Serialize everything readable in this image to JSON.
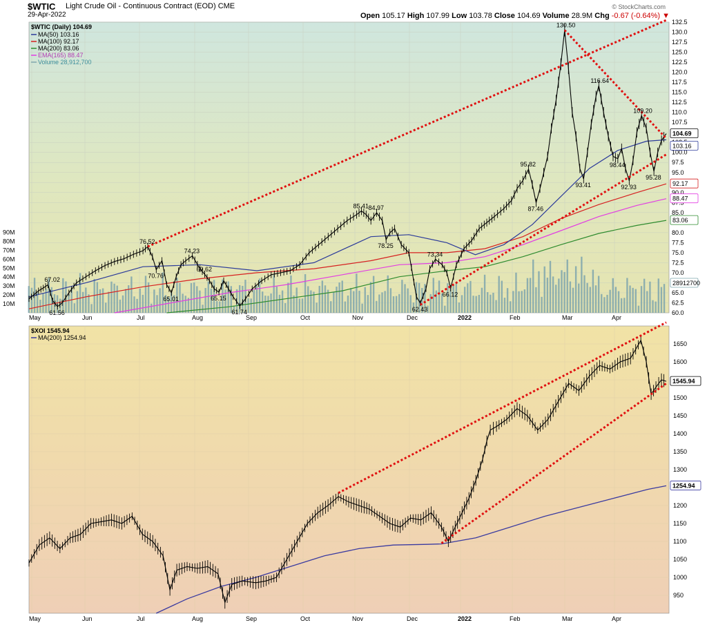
{
  "header": {
    "symbol": "$WTIC",
    "name": "Light Crude Oil - Continuous Contract (EOD) CME",
    "date": "29-Apr-2022",
    "open_label": "Open",
    "open": "105.17",
    "high_label": "High",
    "high": "107.99",
    "low_label": "Low",
    "low": "103.78",
    "close_label": "Close",
    "close": "104.69",
    "volume_label": "Volume",
    "volume": "28.9M",
    "chg_label": "Chg",
    "chg": "-0.67 (-0.64%)",
    "logo": "© StockCharts.com"
  },
  "colors": {
    "price": "#000000",
    "ma50": "#2b3a9a",
    "ma100": "#d62020",
    "ma200": "#2e8b2e",
    "ema165": "#e23de2",
    "volume": "#7fa6ad",
    "channel": "#e01010",
    "xoi_ma200": "#3a3aa0"
  },
  "chart_data": [
    {
      "type": "line",
      "title": "$WTIC (Daily) 104.69",
      "legend": [
        {
          "key": "ma50",
          "label": "MA(50) 103.16"
        },
        {
          "key": "ma100",
          "label": "MA(100) 92.17"
        },
        {
          "key": "ma200",
          "label": "MA(200) 83.06"
        },
        {
          "key": "ema165",
          "label": "EMA(165) 88.47"
        },
        {
          "key": "volume",
          "label": "Volume 28,912,700"
        }
      ],
      "months": [
        "May",
        "Jun",
        "Jul",
        "Aug",
        "Sep",
        "Oct",
        "Nov",
        "Dec",
        "2022",
        "Feb",
        "Mar",
        "Apr"
      ],
      "ylim": [
        60,
        132.5
      ],
      "yticks": [
        "132.5",
        "130.0",
        "127.5",
        "125.0",
        "122.5",
        "120.0",
        "117.5",
        "115.0",
        "112.5",
        "110.0",
        "107.5",
        "105.0",
        "102.5",
        "100.0",
        "97.5",
        "95.0",
        "92.5",
        "90.0",
        "87.5",
        "85.0",
        "82.5",
        "80.0",
        "77.5",
        "75.0",
        "72.5",
        "70.0",
        "67.5",
        "65.0",
        "62.5",
        "60.0"
      ],
      "volume_ticks": [
        "90M",
        "80M",
        "70M",
        "60M",
        "50M",
        "40M",
        "30M",
        "20M",
        "10M"
      ],
      "end_labels": [
        {
          "text": "104.69",
          "y": 104.69,
          "series": "price"
        },
        {
          "text": "103.16",
          "y": 103.16,
          "series": "ma50"
        },
        {
          "text": "92.17",
          "y": 92.17,
          "series": "ma100"
        },
        {
          "text": "88.47",
          "y": 88.47,
          "series": "ema165"
        },
        {
          "text": "83.06",
          "y": 83.06,
          "series": "ma200"
        },
        {
          "text": "28912700",
          "y": 62.3,
          "series": "volume"
        }
      ],
      "price_path": [
        [
          0,
          63.5
        ],
        [
          5,
          64.5
        ],
        [
          10,
          65.5
        ],
        [
          15,
          66.2
        ],
        [
          20,
          67.0
        ],
        [
          25,
          63.0
        ],
        [
          30,
          61.56
        ],
        [
          35,
          62.5
        ],
        [
          42,
          65.0
        ],
        [
          50,
          67.5
        ],
        [
          60,
          69.0
        ],
        [
          70,
          70.5
        ],
        [
          80,
          71.8
        ],
        [
          90,
          72.8
        ],
        [
          100,
          73.5
        ],
        [
          110,
          74.6
        ],
        [
          120,
          75.5
        ],
        [
          125,
          76.52
        ],
        [
          130,
          74.0
        ],
        [
          134,
          70.76
        ],
        [
          140,
          73.0
        ],
        [
          145,
          67.0
        ],
        [
          150,
          65.01
        ],
        [
          155,
          69.0
        ],
        [
          160,
          72.0
        ],
        [
          165,
          73.0
        ],
        [
          172,
          74.23
        ],
        [
          180,
          71.0
        ],
        [
          185,
          69.62
        ],
        [
          190,
          68.0
        ],
        [
          195,
          66.0
        ],
        [
          200,
          65.15
        ],
        [
          205,
          68.0
        ],
        [
          210,
          66.0
        ],
        [
          215,
          64.0
        ],
        [
          222,
          61.74
        ],
        [
          228,
          63.5
        ],
        [
          235,
          66.0
        ],
        [
          245,
          68.0
        ],
        [
          255,
          69.5
        ],
        [
          265,
          70.0
        ],
        [
          275,
          70.5
        ],
        [
          285,
          72.0
        ],
        [
          295,
          75.0
        ],
        [
          305,
          77.0
        ],
        [
          315,
          79.0
        ],
        [
          325,
          81.0
        ],
        [
          335,
          83.0
        ],
        [
          345,
          84.5
        ],
        [
          350,
          85.41
        ],
        [
          355,
          84.5
        ],
        [
          360,
          83.0
        ],
        [
          366,
          84.97
        ],
        [
          372,
          83.0
        ],
        [
          376,
          78.25
        ],
        [
          380,
          80.0
        ],
        [
          385,
          81.0
        ],
        [
          392,
          77.0
        ],
        [
          400,
          75.0
        ],
        [
          408,
          64.0
        ],
        [
          412,
          62.43
        ],
        [
          418,
          66.0
        ],
        [
          422,
          71.0
        ],
        [
          428,
          73.34
        ],
        [
          435,
          72.0
        ],
        [
          440,
          70.0
        ],
        [
          444,
          66.12
        ],
        [
          450,
          72.0
        ],
        [
          458,
          76.0
        ],
        [
          466,
          78.0
        ],
        [
          474,
          81.0
        ],
        [
          482,
          82.5
        ],
        [
          490,
          84.0
        ],
        [
          500,
          86.0
        ],
        [
          508,
          88.0
        ],
        [
          514,
          91.0
        ],
        [
          520,
          93.0
        ],
        [
          526,
          95.82
        ],
        [
          530,
          92.0
        ],
        [
          534,
          87.46
        ],
        [
          538,
          91.0
        ],
        [
          542,
          95.0
        ],
        [
          546,
          99.0
        ],
        [
          550,
          106.0
        ],
        [
          555,
          113.0
        ],
        [
          560,
          122.0
        ],
        [
          564,
          130.5
        ],
        [
          568,
          121.0
        ],
        [
          572,
          110.0
        ],
        [
          576,
          104.0
        ],
        [
          580,
          96.0
        ],
        [
          584,
          93.41
        ],
        [
          588,
          100.0
        ],
        [
          592,
          107.0
        ],
        [
          597,
          114.0
        ],
        [
          600,
          116.64
        ],
        [
          605,
          110.0
        ],
        [
          610,
          104.0
        ],
        [
          615,
          99.0
        ],
        [
          620,
          98.44
        ],
        [
          624,
          101.0
        ],
        [
          628,
          96.0
        ],
        [
          632,
          92.93
        ],
        [
          636,
          98.0
        ],
        [
          640,
          105.0
        ],
        [
          645,
          109.2
        ],
        [
          650,
          106.0
        ],
        [
          654,
          100.0
        ],
        [
          658,
          95.28
        ],
        [
          662,
          100.0
        ],
        [
          666,
          103.0
        ],
        [
          671,
          104.69
        ]
      ],
      "ma50_path": [
        [
          0,
          64.0
        ],
        [
          60,
          67.5
        ],
        [
          120,
          71.5
        ],
        [
          180,
          72.0
        ],
        [
          240,
          70.5
        ],
        [
          300,
          72.5
        ],
        [
          360,
          79.0
        ],
        [
          400,
          79.5
        ],
        [
          440,
          77.5
        ],
        [
          470,
          74.5
        ],
        [
          500,
          77.0
        ],
        [
          530,
          82.0
        ],
        [
          560,
          89.0
        ],
        [
          590,
          96.0
        ],
        [
          620,
          100.5
        ],
        [
          650,
          102.8
        ],
        [
          671,
          103.16
        ]
      ],
      "ma100_path": [
        [
          0,
          61.0
        ],
        [
          60,
          64.0
        ],
        [
          120,
          66.5
        ],
        [
          180,
          68.5
        ],
        [
          240,
          70.0
        ],
        [
          300,
          71.0
        ],
        [
          360,
          73.0
        ],
        [
          400,
          75.0
        ],
        [
          440,
          75.0
        ],
        [
          480,
          76.0
        ],
        [
          520,
          79.0
        ],
        [
          560,
          83.5
        ],
        [
          600,
          87.0
        ],
        [
          640,
          90.0
        ],
        [
          671,
          92.17
        ]
      ],
      "ema165_path": [
        [
          90,
          60.0
        ],
        [
          150,
          62.5
        ],
        [
          210,
          65.0
        ],
        [
          270,
          67.0
        ],
        [
          330,
          69.5
        ],
        [
          390,
          72.0
        ],
        [
          440,
          72.5
        ],
        [
          480,
          74.0
        ],
        [
          520,
          77.0
        ],
        [
          560,
          80.5
        ],
        [
          600,
          84.0
        ],
        [
          640,
          86.8
        ],
        [
          671,
          88.47
        ]
      ],
      "ma200_path": [
        [
          145,
          60.0
        ],
        [
          210,
          61.5
        ],
        [
          270,
          63.5
        ],
        [
          330,
          65.5
        ],
        [
          390,
          69.0
        ],
        [
          440,
          70.5
        ],
        [
          480,
          71.5
        ],
        [
          520,
          74.0
        ],
        [
          560,
          77.0
        ],
        [
          600,
          79.8
        ],
        [
          640,
          81.8
        ],
        [
          671,
          83.06
        ]
      ],
      "channel_lines": [
        [
          [
            125,
            76.52
          ],
          [
            671,
            133.0
          ]
        ],
        [
          [
            412,
            62.0
          ],
          [
            671,
            99.5
          ]
        ],
        [
          [
            564,
            130.5
          ],
          [
            671,
            103.5
          ]
        ]
      ],
      "annotations": [
        {
          "text": "67.02",
          "x": 25,
          "y": 67.02
        },
        {
          "text": "61.56",
          "x": 30,
          "y": 61.56
        },
        {
          "text": "76.52",
          "x": 125,
          "y": 76.52
        },
        {
          "text": "70.76",
          "x": 134,
          "y": 70.76
        },
        {
          "text": "65.01",
          "x": 150,
          "y": 65.01
        },
        {
          "text": "74.23",
          "x": 172,
          "y": 74.23
        },
        {
          "text": "69.62",
          "x": 185,
          "y": 69.62
        },
        {
          "text": "65.15",
          "x": 200,
          "y": 65.15
        },
        {
          "text": "61.74",
          "x": 222,
          "y": 61.74
        },
        {
          "text": "85.41",
          "x": 350,
          "y": 85.41
        },
        {
          "text": "84.97",
          "x": 366,
          "y": 84.97
        },
        {
          "text": "78.25",
          "x": 376,
          "y": 78.25
        },
        {
          "text": "73.34",
          "x": 428,
          "y": 73.34
        },
        {
          "text": "62.43",
          "x": 412,
          "y": 62.43
        },
        {
          "text": "66.12",
          "x": 444,
          "y": 66.12
        },
        {
          "text": "95.82",
          "x": 526,
          "y": 95.82
        },
        {
          "text": "87.46",
          "x": 534,
          "y": 87.46
        },
        {
          "text": "130.50",
          "x": 564,
          "y": 130.5
        },
        {
          "text": "93.41",
          "x": 584,
          "y": 93.41
        },
        {
          "text": "116.64",
          "x": 600,
          "y": 116.64
        },
        {
          "text": "98.44",
          "x": 620,
          "y": 98.44
        },
        {
          "text": "92.93",
          "x": 632,
          "y": 92.93
        },
        {
          "text": "109.20",
          "x": 645,
          "y": 109.2
        },
        {
          "text": "95.28",
          "x": 658,
          "y": 95.28
        }
      ]
    },
    {
      "type": "line",
      "title": "$XOI 1545.94",
      "legend": [
        {
          "key": "xoi_ma200",
          "label": "MA(200) 1254.94"
        }
      ],
      "months": [
        "May",
        "Jun",
        "Jul",
        "Aug",
        "Sep",
        "Oct",
        "Nov",
        "Dec",
        "2022",
        "Feb",
        "Mar",
        "Apr"
      ],
      "ylim": [
        900,
        1700
      ],
      "yticks": [
        "1650",
        "1600",
        "1550",
        "1500",
        "1450",
        "1400",
        "1350",
        "1300",
        "1250",
        "1200",
        "1150",
        "1100",
        "1050",
        "1000",
        "950"
      ],
      "end_labels": [
        {
          "text": "1545.94",
          "y": 1545.94,
          "series": "price"
        },
        {
          "text": "1254.94",
          "y": 1254.94,
          "series": "xoi_ma200"
        }
      ],
      "price_path": [
        [
          0,
          1040
        ],
        [
          15,
          1090
        ],
        [
          30,
          1110
        ],
        [
          45,
          1080
        ],
        [
          60,
          1110
        ],
        [
          75,
          1120
        ],
        [
          90,
          1150
        ],
        [
          105,
          1155
        ],
        [
          120,
          1160
        ],
        [
          135,
          1150
        ],
        [
          150,
          1170
        ],
        [
          165,
          1120
        ],
        [
          180,
          1100
        ],
        [
          195,
          1060
        ],
        [
          205,
          965
        ],
        [
          215,
          1020
        ],
        [
          230,
          1030
        ],
        [
          245,
          1025
        ],
        [
          260,
          1030
        ],
        [
          275,
          1010
        ],
        [
          285,
          930
        ],
        [
          295,
          980
        ],
        [
          310,
          990
        ],
        [
          330,
          985
        ],
        [
          345,
          990
        ],
        [
          360,
          1000
        ],
        [
          375,
          1050
        ],
        [
          390,
          1100
        ],
        [
          405,
          1150
        ],
        [
          420,
          1180
        ],
        [
          435,
          1200
        ],
        [
          450,
          1225
        ],
        [
          465,
          1210
        ],
        [
          480,
          1200
        ],
        [
          495,
          1190
        ],
        [
          510,
          1170
        ],
        [
          525,
          1150
        ],
        [
          540,
          1140
        ],
        [
          555,
          1165
        ],
        [
          570,
          1160
        ],
        [
          585,
          1180
        ],
        [
          600,
          1140
        ],
        [
          610,
          1100
        ],
        [
          620,
          1140
        ],
        [
          630,
          1180
        ],
        [
          640,
          1220
        ],
        [
          650,
          1270
        ],
        [
          660,
          1330
        ],
        [
          666,
          1380
        ],
        [
          671,
          1410
        ],
        [
          680,
          1420
        ],
        [
          695,
          1440
        ],
        [
          710,
          1470
        ],
        [
          725,
          1450
        ],
        [
          740,
          1410
        ],
        [
          755,
          1440
        ],
        [
          770,
          1490
        ],
        [
          785,
          1540
        ],
        [
          800,
          1520
        ],
        [
          815,
          1560
        ],
        [
          830,
          1590
        ],
        [
          845,
          1580
        ],
        [
          860,
          1600
        ],
        [
          875,
          1610
        ],
        [
          890,
          1660
        ],
        [
          898,
          1600
        ],
        [
          905,
          1510
        ],
        [
          912,
          1530
        ],
        [
          920,
          1550
        ],
        [
          927,
          1545.94
        ]
      ],
      "ma200_path": [
        [
          185,
          900
        ],
        [
          230,
          940
        ],
        [
          280,
          975
        ],
        [
          330,
          1000
        ],
        [
          380,
          1030
        ],
        [
          430,
          1060
        ],
        [
          480,
          1080
        ],
        [
          530,
          1090
        ],
        [
          580,
          1092
        ],
        [
          600,
          1093
        ],
        [
          650,
          1110
        ],
        [
          700,
          1140
        ],
        [
          750,
          1170
        ],
        [
          800,
          1195
        ],
        [
          850,
          1220
        ],
        [
          900,
          1245
        ],
        [
          927,
          1254.94
        ]
      ],
      "channel_lines": [
        [
          [
            450,
            1235
          ],
          [
            927,
            1710
          ]
        ],
        [
          [
            600,
            1095
          ],
          [
            927,
            1540
          ]
        ]
      ]
    }
  ]
}
